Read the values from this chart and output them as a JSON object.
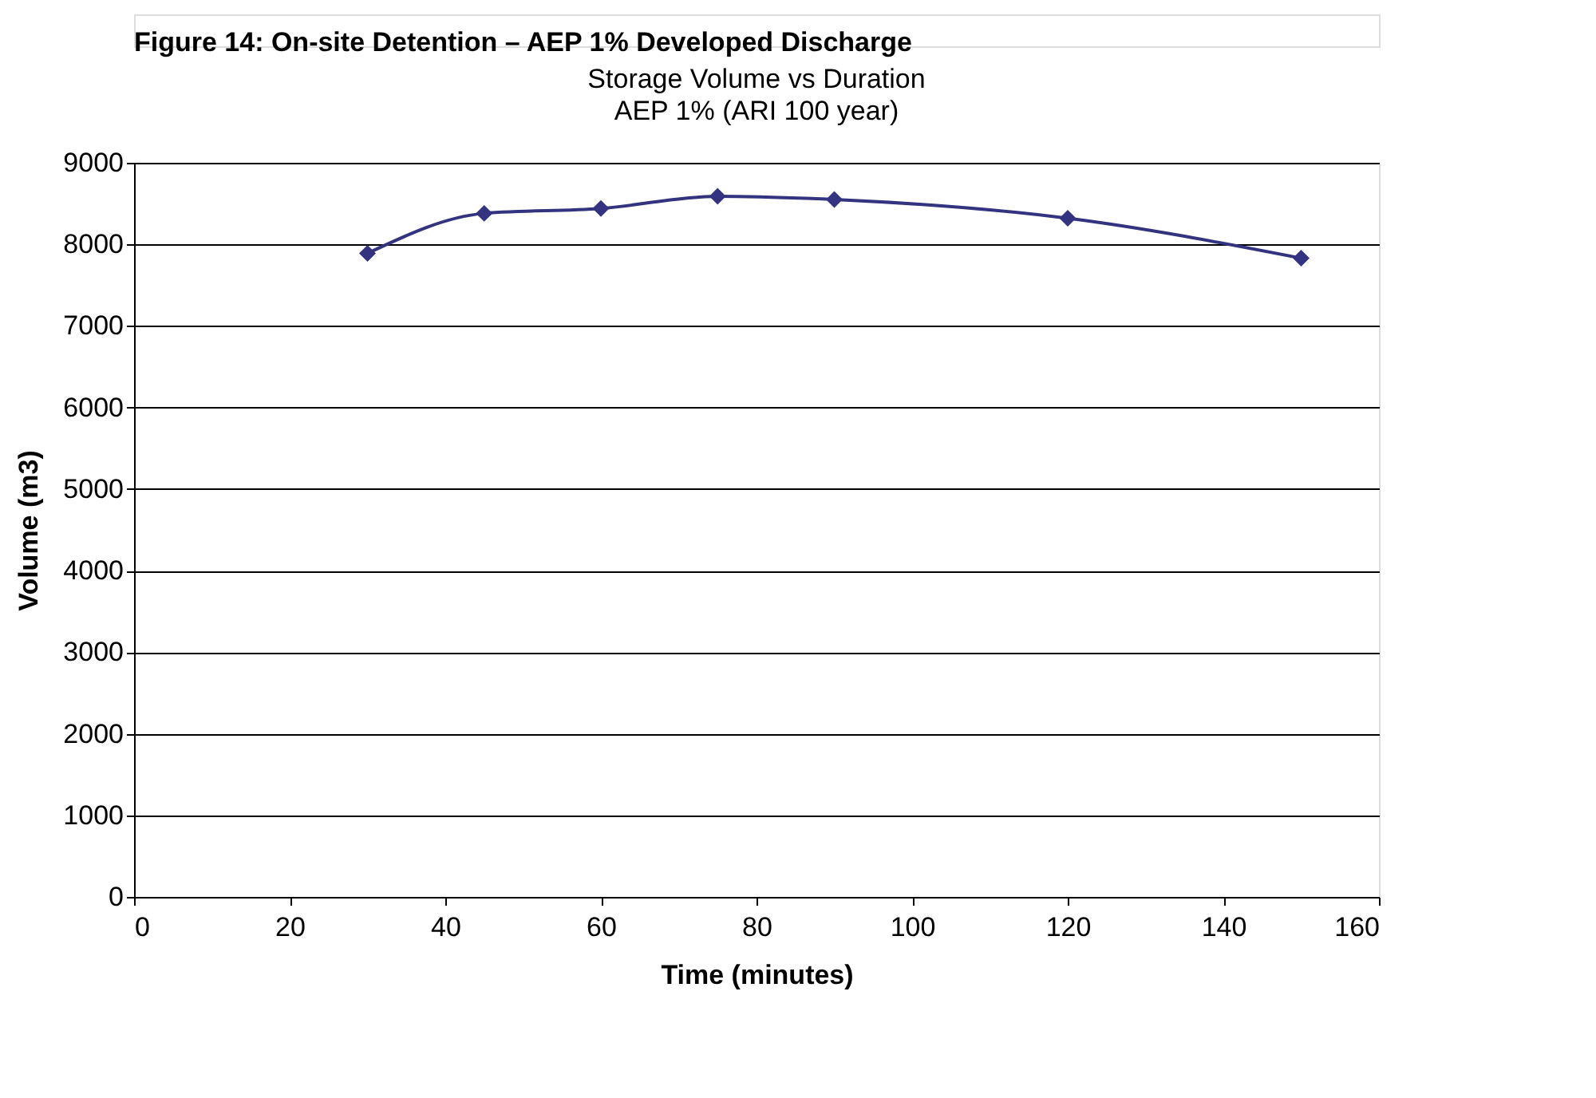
{
  "chart_data": {
    "type": "line",
    "title": "Storage Volume vs Duration",
    "subtitle": "AEP 1% (ARI 100 year)",
    "xlabel": "Time (minutes)",
    "ylabel": "Volume (m3)",
    "annotations": [
      "Figure 14: On-site Detention – AEP 1% Developed Discharge"
    ],
    "x": [
      30,
      45,
      60,
      75,
      90,
      120,
      150
    ],
    "series": [
      {
        "color": "#333380",
        "values": [
          7890,
          8380,
          8440,
          8590,
          8550,
          8320,
          7830
        ]
      }
    ],
    "xlim": [
      0,
      160
    ],
    "xticks": [
      0,
      20,
      40,
      60,
      80,
      100,
      120,
      140,
      160
    ],
    "ylim": [
      0,
      9000
    ],
    "yticks": [
      0,
      1000,
      2000,
      3000,
      4000,
      5000,
      6000,
      7000,
      8000,
      9000
    ],
    "grid": "y",
    "marker": "diamond",
    "line_style": "solid"
  }
}
